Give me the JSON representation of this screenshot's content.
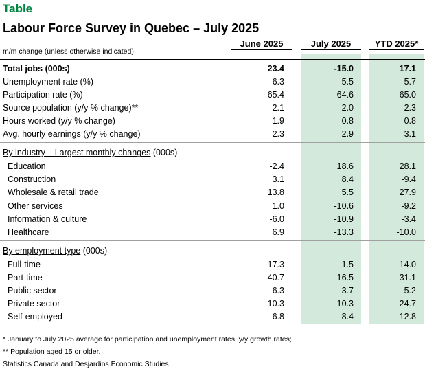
{
  "tag": "Table",
  "title": "Labour Force Survey in Quebec – July 2025",
  "subheader": "m/m change (unless otherwise indicated)",
  "columns": [
    "June 2025",
    "July 2025",
    "YTD 2025*"
  ],
  "colors": {
    "tag": "#008540",
    "shade": "#d3e9dc"
  },
  "summary_rows": [
    {
      "label": "Total jobs (000s)",
      "values": [
        "23.4",
        "-15.0",
        "17.1"
      ]
    },
    {
      "label": "Unemployment rate (%)",
      "values": [
        "6.3",
        "5.5",
        "5.7"
      ]
    },
    {
      "label": "Participation rate (%)",
      "values": [
        "65.4",
        "64.6",
        "65.0"
      ]
    },
    {
      "label": "Source population (y/y % change)**",
      "values": [
        "2.1",
        "2.0",
        "2.3"
      ]
    },
    {
      "label": "Hours worked (y/y % change)",
      "values": [
        "1.9",
        "0.8",
        "0.8"
      ]
    },
    {
      "label": "Avg. hourly earnings (y/y % change)",
      "values": [
        "2.3",
        "2.9",
        "3.1"
      ]
    }
  ],
  "industry_section": {
    "title": "By industry – Largest monthly changes",
    "unit": " (000s)",
    "rows": [
      {
        "label": "Education",
        "values": [
          "-2.4",
          "18.6",
          "28.1"
        ]
      },
      {
        "label": "Construction",
        "values": [
          "3.1",
          "8.4",
          "-9.4"
        ]
      },
      {
        "label": "Wholesale & retail trade",
        "values": [
          "13.8",
          "5.5",
          "27.9"
        ]
      },
      {
        "label": "Other services",
        "values": [
          "1.0",
          "-10.6",
          "-9.2"
        ]
      },
      {
        "label": "Information & culture",
        "values": [
          "-6.0",
          "-10.9",
          "-3.4"
        ]
      },
      {
        "label": "Healthcare",
        "values": [
          "6.9",
          "-13.3",
          "-10.0"
        ]
      }
    ]
  },
  "employment_section": {
    "title": "By employment type",
    "unit": " (000s)",
    "rows": [
      {
        "label": "Full-time",
        "values": [
          "-17.3",
          "1.5",
          "-14.0"
        ]
      },
      {
        "label": "Part-time",
        "values": [
          "40.7",
          "-16.5",
          "31.1"
        ]
      },
      {
        "label": "Public sector",
        "values": [
          "6.3",
          "3.7",
          "5.2"
        ]
      },
      {
        "label": "Private sector",
        "values": [
          "10.3",
          "-10.3",
          "24.7"
        ]
      },
      {
        "label": "Self-employed",
        "values": [
          "6.8",
          "-8.4",
          "-12.8"
        ]
      }
    ]
  },
  "footnotes": [
    "* January to July 2025 average for participation and unemployment rates, y/y growth rates;",
    "** Population aged 15 or older.",
    "Statistics Canada and Desjardins Economic Studies"
  ]
}
